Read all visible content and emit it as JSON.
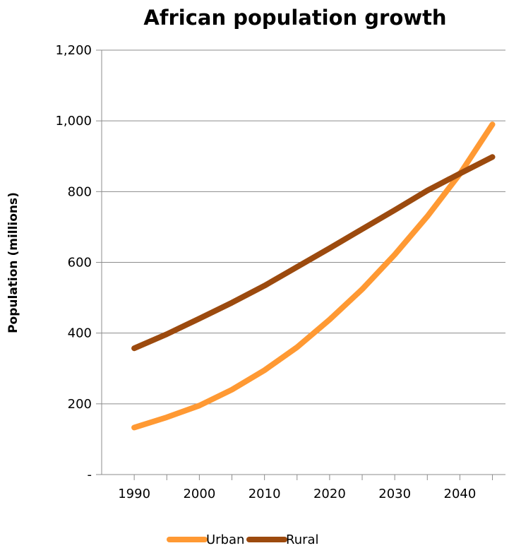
{
  "chart_data": {
    "type": "line",
    "title": "African population growth",
    "xlabel": "",
    "ylabel": "Population (millions)",
    "ylim": [
      0,
      1200
    ],
    "xlim": [
      1985,
      2047
    ],
    "yticks": [
      {
        "value": 0,
        "label": "-"
      },
      {
        "value": 200,
        "label": "200"
      },
      {
        "value": 400,
        "label": "400"
      },
      {
        "value": 600,
        "label": "600"
      },
      {
        "value": 800,
        "label": "800"
      },
      {
        "value": 1000,
        "label": "1,000"
      },
      {
        "value": 1200,
        "label": "1,200"
      }
    ],
    "xticks": [
      {
        "value": 1990,
        "label": "1990"
      },
      {
        "value": 2000,
        "label": "2000"
      },
      {
        "value": 2010,
        "label": "2010"
      },
      {
        "value": 2020,
        "label": "2020"
      },
      {
        "value": 2030,
        "label": "2030"
      },
      {
        "value": 2040,
        "label": "2040"
      }
    ],
    "grid": "horizontal",
    "legend_position": "bottom",
    "x": [
      1990,
      1995,
      2000,
      2005,
      2010,
      2015,
      2020,
      2025,
      2030,
      2035,
      2040,
      2045
    ],
    "series": [
      {
        "name": "Urban",
        "color": "#ff9933",
        "values": [
          133,
          162,
          195,
          240,
          295,
          360,
          438,
          524,
          622,
          730,
          850,
          990
        ]
      },
      {
        "name": "Rural",
        "color": "#9c4a0e",
        "values": [
          357,
          397,
          441,
          486,
          534,
          587,
          640,
          694,
          748,
          803,
          851,
          898
        ]
      }
    ]
  }
}
